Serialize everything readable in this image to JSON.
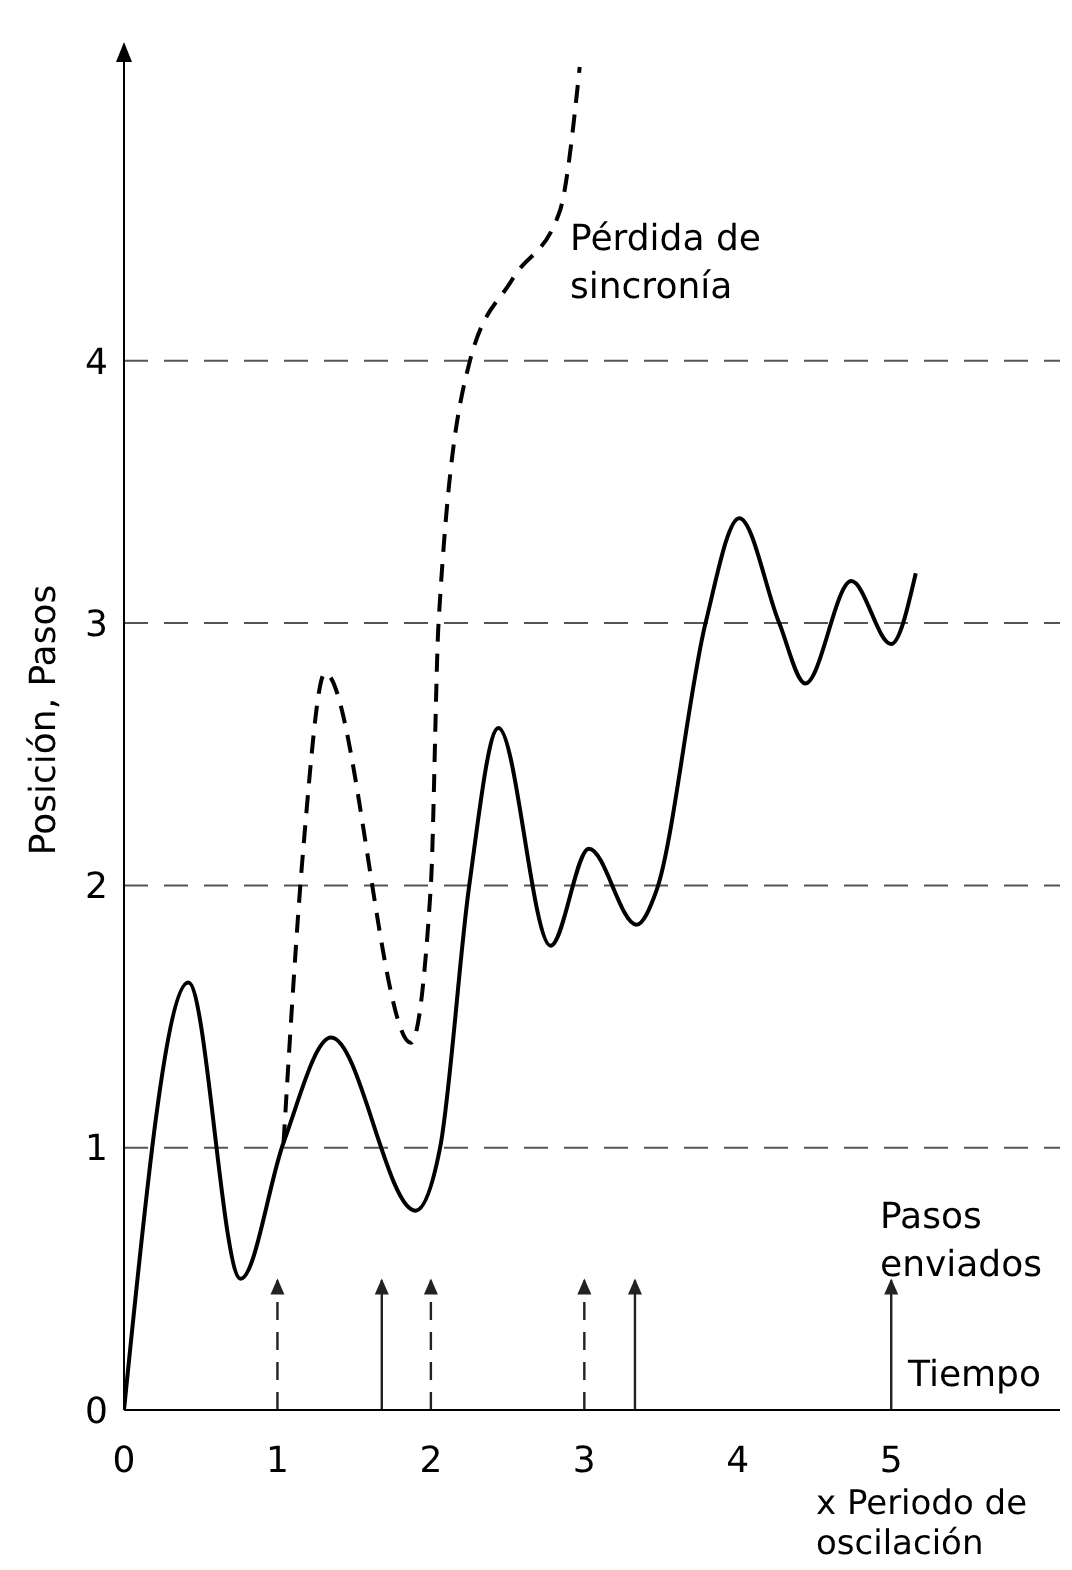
{
  "chart_data": {
    "type": "line",
    "xlabel": "x Periodo de oscilación",
    "ylabel": "Posición, Pasos",
    "annotations": [
      "Pérdida de sincronía",
      "Pasos enviados",
      "Tiempo"
    ],
    "xlim": [
      0,
      6.1
    ],
    "ylim": [
      0,
      5.2
    ],
    "xticks": [
      0,
      1,
      2,
      3,
      4,
      5
    ],
    "yticks": [
      0,
      1,
      2,
      3,
      4
    ],
    "grid": "y",
    "series": [
      {
        "color": "#000000",
        "line_style": "solid",
        "x": [
          0,
          0.42,
          0.76,
          1.04,
          1.35,
          1.9,
          2.06,
          2.25,
          2.44,
          2.78,
          3.03,
          3.34,
          3.47,
          3.79,
          4.01,
          4.27,
          4.44,
          4.74,
          5.0,
          5.16
        ],
        "values": [
          0,
          1.63,
          0.5,
          1.02,
          1.42,
          0.76,
          1.0,
          2.0,
          2.6,
          1.77,
          2.14,
          1.85,
          1.98,
          3.0,
          3.4,
          3.0,
          2.77,
          3.16,
          2.92,
          3.19
        ]
      },
      {
        "color": "#000000",
        "line_style": "dashed",
        "x": [
          1.04,
          1.17,
          1.31,
          1.87,
          2.0,
          2.05,
          2.25,
          2.53,
          2.84,
          2.97
        ],
        "values": [
          1.02,
          2.15,
          2.81,
          1.4,
          2.0,
          3.0,
          3.99,
          4.31,
          4.57,
          5.12
        ]
      }
    ],
    "ref_lines": [
      {
        "axis": "x",
        "value": 1,
        "line_style": "dashed"
      },
      {
        "axis": "x",
        "value": 1.68,
        "line_style": "solid"
      },
      {
        "axis": "x",
        "value": 2,
        "line_style": "dashed"
      },
      {
        "axis": "x",
        "value": 3,
        "line_style": "dashed"
      },
      {
        "axis": "x",
        "value": 3.33,
        "line_style": "solid"
      },
      {
        "axis": "x",
        "value": 5,
        "line_style": "solid"
      }
    ]
  }
}
